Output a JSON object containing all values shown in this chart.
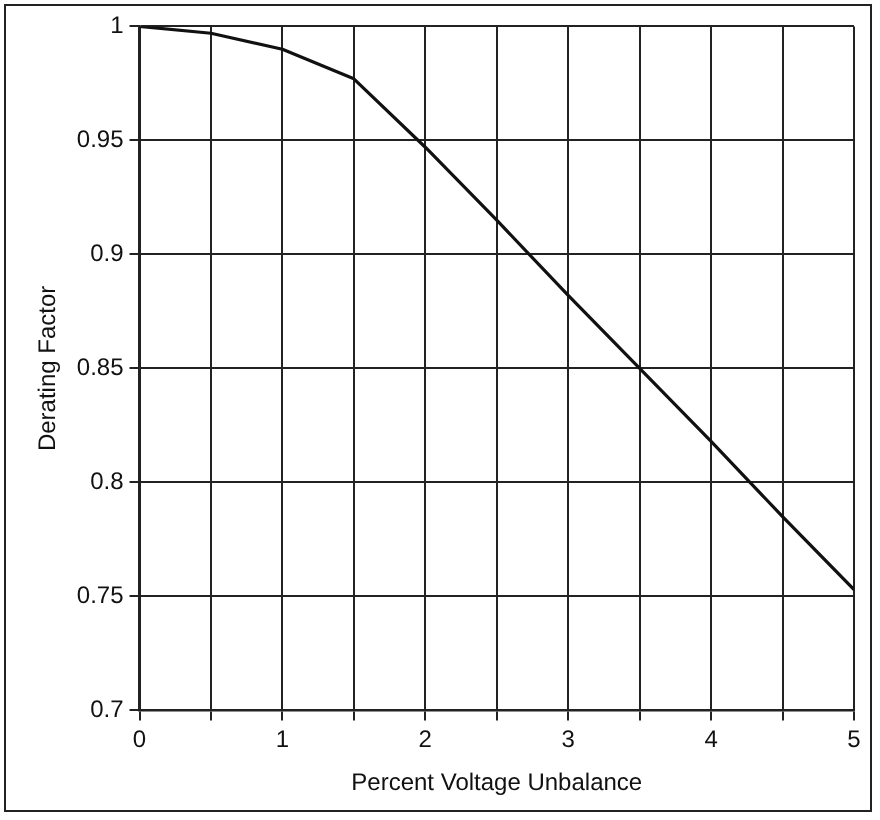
{
  "chart_data": {
    "type": "line",
    "xlabel": "Percent Voltage Unbalance",
    "ylabel": "Derating Factor",
    "x": [
      0,
      0.5,
      1,
      1.5,
      2,
      2.5,
      3,
      3.5,
      4,
      4.5,
      5
    ],
    "values": [
      1,
      0.997,
      0.99,
      0.977,
      0.947,
      0.915,
      0.882,
      0.85,
      0.818,
      0.785,
      0.753
    ],
    "color": "#111111",
    "xlim": [
      0,
      5
    ],
    "xticks": [
      0,
      {
        "value": 0.5,
        "label": null
      },
      1,
      {
        "value": 1.5,
        "label": null
      },
      2,
      {
        "value": 2.5,
        "label": null
      },
      3,
      {
        "value": 3.5,
        "label": null
      },
      4,
      {
        "value": 4.5,
        "label": null
      },
      5
    ],
    "ylim": [
      0.7,
      1
    ],
    "yticks": [
      0.7,
      0.75,
      0.8,
      0.85,
      0.9,
      0.95,
      1
    ],
    "grid": true,
    "legend": false,
    "marker": "none",
    "line_style": "solid"
  }
}
